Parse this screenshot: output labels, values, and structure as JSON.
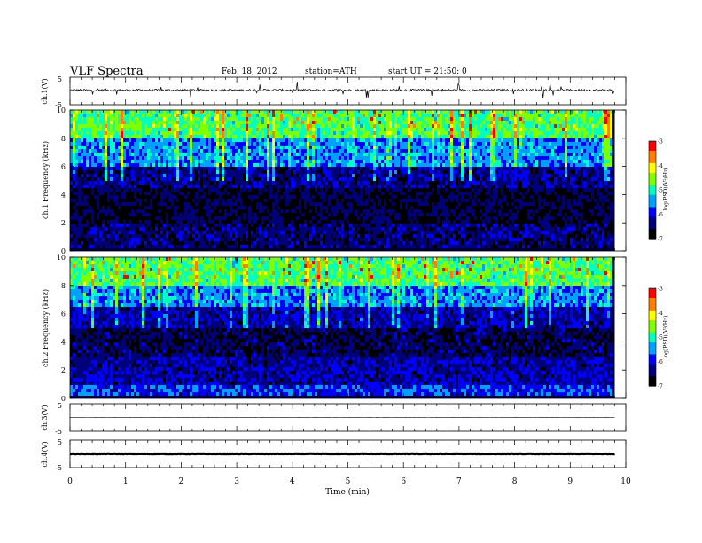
{
  "header": {
    "title": "VLF Spectra",
    "date": "Feb. 18, 2012",
    "station": "station=ATH",
    "start": "start UT =  21:50: 0"
  },
  "chart_data": [
    {
      "type": "line",
      "ylabel": "ch.1(V)",
      "yticks": [
        "5",
        "-5"
      ],
      "ylim": [
        -5,
        5
      ],
      "xlim": [
        0,
        10
      ],
      "baseline": 0.3,
      "description_of_trace": "noisy signal around 0 V ending near 9.8 min"
    },
    {
      "type": "heatmap",
      "ylabel": "ch.1 Frequency (kHz)",
      "yticks": [
        "10",
        "8",
        "6",
        "4",
        "2",
        "0"
      ],
      "ylim": [
        0,
        10
      ],
      "xlim": [
        0,
        10
      ],
      "data_end_min": 9.8,
      "colorbar": {
        "label": "log(PSD)(V²/Hz)",
        "ticks": [
          "-3",
          "-4",
          "-5",
          "-6",
          "-7"
        ],
        "range": [
          -7,
          -3
        ]
      },
      "bands": [
        {
          "fmin": 0.0,
          "fmax": 0.3,
          "level": -6.0
        },
        {
          "fmin": 0.3,
          "fmax": 2.0,
          "level": -6.4
        },
        {
          "fmin": 2.0,
          "fmax": 4.5,
          "level": -6.6
        },
        {
          "fmin": 4.5,
          "fmax": 6.0,
          "level": -6.3
        },
        {
          "fmin": 6.0,
          "fmax": 8.0,
          "level": -5.5
        },
        {
          "fmin": 8.0,
          "fmax": 10.0,
          "level": -4.8
        }
      ]
    },
    {
      "type": "heatmap",
      "ylabel": "ch.2 Frequency (kHz)",
      "yticks": [
        "10",
        "8",
        "6",
        "4",
        "2",
        "0"
      ],
      "ylim": [
        0,
        10
      ],
      "xlim": [
        0,
        10
      ],
      "data_end_min": 9.8,
      "colorbar": {
        "label": "log(PSD)(V²/Hz)",
        "ticks": [
          "-3",
          "-4",
          "-5",
          "-6",
          "-7"
        ],
        "range": [
          -7,
          -3
        ]
      },
      "bands": [
        {
          "fmin": 0.0,
          "fmax": 1.0,
          "level": -5.8
        },
        {
          "fmin": 1.0,
          "fmax": 3.0,
          "level": -6.2
        },
        {
          "fmin": 3.0,
          "fmax": 5.0,
          "level": -6.5
        },
        {
          "fmin": 5.0,
          "fmax": 6.5,
          "level": -6.2
        },
        {
          "fmin": 6.5,
          "fmax": 8.0,
          "level": -5.5
        },
        {
          "fmin": 8.0,
          "fmax": 10.0,
          "level": -4.8
        }
      ]
    },
    {
      "type": "line",
      "ylabel": "ch.3(V)",
      "yticks": [
        "5",
        "-5"
      ],
      "ylim": [
        -5,
        5
      ],
      "xlim": [
        0,
        10
      ],
      "baseline": 0.0,
      "description_of_trace": "flat thin trace near 0 V"
    },
    {
      "type": "line",
      "ylabel": "ch.4(V)",
      "yticks": [
        "5",
        "-5"
      ],
      "ylim": [
        -5,
        5
      ],
      "xlim": [
        0,
        10
      ],
      "baseline": 0.0,
      "description_of_trace": "thick flat trace near 0 V"
    }
  ],
  "xaxis": {
    "label": "Time (min)",
    "ticks": [
      "0",
      "1",
      "2",
      "3",
      "4",
      "5",
      "6",
      "7",
      "8",
      "9",
      "10"
    ]
  },
  "colors": {
    "colormap": [
      "#000000",
      "#00007a",
      "#0000ff",
      "#00a0ff",
      "#00ffc0",
      "#80ff00",
      "#ffff00",
      "#ff8000",
      "#ff0000",
      "#ffffff"
    ]
  }
}
